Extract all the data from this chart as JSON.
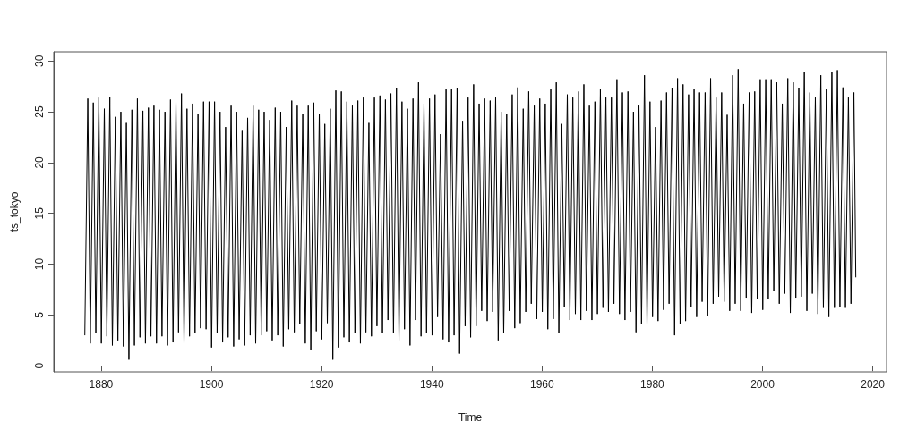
{
  "chart_data": {
    "type": "line",
    "xlabel": "Time",
    "ylabel": "ts_tokyo",
    "xlim": [
      1871.4,
      2022.5
    ],
    "ylim": [
      -0.6,
      30.9
    ],
    "xticks": [
      1880,
      1900,
      1920,
      1940,
      1960,
      1980,
      2000,
      2020
    ],
    "yticks": [
      0,
      5,
      10,
      15,
      20,
      25,
      30
    ],
    "x": [
      1877.04,
      1877.58,
      1878.04,
      1878.58,
      1879.04,
      1879.58,
      1880.04,
      1880.58,
      1881.04,
      1881.58,
      1882.04,
      1882.58,
      1883.04,
      1883.58,
      1884.04,
      1884.58,
      1885.04,
      1885.58,
      1886.04,
      1886.58,
      1887.04,
      1887.58,
      1888.04,
      1888.58,
      1889.04,
      1889.58,
      1890.04,
      1890.58,
      1891.04,
      1891.58,
      1892.04,
      1892.58,
      1893.04,
      1893.58,
      1894.04,
      1894.58,
      1895.04,
      1895.58,
      1896.04,
      1896.58,
      1897.04,
      1897.58,
      1898.04,
      1898.58,
      1899.04,
      1899.58,
      1900.04,
      1900.58,
      1901.04,
      1901.58,
      1902.04,
      1902.58,
      1903.04,
      1903.58,
      1904.04,
      1904.58,
      1905.04,
      1905.58,
      1906.04,
      1906.58,
      1907.04,
      1907.58,
      1908.04,
      1908.58,
      1909.04,
      1909.58,
      1910.04,
      1910.58,
      1911.04,
      1911.58,
      1912.04,
      1912.58,
      1913.04,
      1913.58,
      1914.04,
      1914.58,
      1915.04,
      1915.58,
      1916.04,
      1916.58,
      1917.04,
      1917.58,
      1918.04,
      1918.58,
      1919.04,
      1919.58,
      1920.04,
      1920.58,
      1921.04,
      1921.58,
      1922.04,
      1922.58,
      1923.04,
      1923.58,
      1924.04,
      1924.58,
      1925.04,
      1925.58,
      1926.04,
      1926.58,
      1927.04,
      1927.58,
      1928.04,
      1928.58,
      1929.04,
      1929.58,
      1930.04,
      1930.58,
      1931.04,
      1931.58,
      1932.04,
      1932.58,
      1933.04,
      1933.58,
      1934.04,
      1934.58,
      1935.04,
      1935.58,
      1936.04,
      1936.58,
      1937.04,
      1937.58,
      1938.04,
      1938.58,
      1939.04,
      1939.58,
      1940.04,
      1940.58,
      1941.04,
      1941.58,
      1942.04,
      1942.58,
      1943.04,
      1943.58,
      1944.04,
      1944.58,
      1945.04,
      1945.58,
      1946.04,
      1946.58,
      1947.04,
      1947.58,
      1948.04,
      1948.58,
      1949.04,
      1949.58,
      1950.04,
      1950.58,
      1951.04,
      1951.58,
      1952.04,
      1952.58,
      1953.04,
      1953.58,
      1954.04,
      1954.58,
      1955.04,
      1955.58,
      1956.04,
      1956.58,
      1957.04,
      1957.58,
      1958.04,
      1958.58,
      1959.04,
      1959.58,
      1960.04,
      1960.58,
      1961.04,
      1961.58,
      1962.04,
      1962.58,
      1963.04,
      1963.58,
      1964.04,
      1964.58,
      1965.04,
      1965.58,
      1966.04,
      1966.58,
      1967.04,
      1967.58,
      1968.04,
      1968.58,
      1969.04,
      1969.58,
      1970.04,
      1970.58,
      1971.04,
      1971.58,
      1972.04,
      1972.58,
      1973.04,
      1973.58,
      1974.04,
      1974.58,
      1975.04,
      1975.58,
      1976.04,
      1976.58,
      1977.04,
      1977.58,
      1978.04,
      1978.58,
      1979.04,
      1979.58,
      1980.04,
      1980.58,
      1981.04,
      1981.58,
      1982.04,
      1982.58,
      1983.04,
      1983.58,
      1984.04,
      1984.58,
      1985.04,
      1985.58,
      1986.04,
      1986.58,
      1987.04,
      1987.58,
      1988.04,
      1988.58,
      1989.04,
      1989.58,
      1990.04,
      1990.58,
      1991.04,
      1991.58,
      1992.04,
      1992.58,
      1993.04,
      1993.58,
      1994.04,
      1994.58,
      1995.04,
      1995.58,
      1996.04,
      1996.58,
      1997.04,
      1997.58,
      1998.04,
      1998.58,
      1999.04,
      1999.58,
      2000.04,
      2000.58,
      2001.04,
      2001.58,
      2002.04,
      2002.58,
      2003.04,
      2003.58,
      2004.04,
      2004.58,
      2005.04,
      2005.58,
      2006.04,
      2006.58,
      2007.04,
      2007.58,
      2008.04,
      2008.58,
      2009.04,
      2009.58,
      2010.04,
      2010.58,
      2011.04,
      2011.58,
      2012.04,
      2012.58,
      2013.04,
      2013.58,
      2014.04,
      2014.58,
      2015.04,
      2015.58,
      2016.04,
      2016.58,
      2016.92
    ],
    "series": [
      {
        "color": "#000000",
        "values": [
          3.0,
          26.3,
          2.2,
          25.9,
          3.2,
          26.4,
          2.2,
          25.3,
          2.9,
          26.5,
          2.0,
          24.5,
          2.5,
          25.0,
          1.9,
          23.9,
          0.6,
          25.2,
          2.0,
          26.3,
          2.8,
          25.1,
          2.2,
          25.4,
          2.9,
          25.6,
          2.2,
          25.2,
          2.9,
          25.0,
          2.0,
          26.2,
          2.3,
          26.0,
          3.3,
          26.8,
          2.2,
          25.3,
          2.9,
          25.8,
          3.2,
          24.8,
          3.7,
          26.0,
          3.6,
          26.0,
          1.8,
          26.0,
          3.2,
          25.0,
          2.3,
          23.5,
          2.8,
          25.6,
          1.9,
          25.0,
          2.6,
          23.2,
          2.0,
          24.4,
          3.0,
          25.6,
          2.2,
          25.2,
          3.0,
          25.0,
          3.4,
          24.2,
          2.5,
          25.4,
          3.0,
          25.0,
          1.9,
          23.5,
          3.6,
          26.1,
          3.3,
          25.6,
          4.1,
          24.8,
          2.2,
          25.6,
          1.6,
          25.9,
          3.4,
          24.8,
          2.6,
          23.8,
          4.2,
          25.3,
          0.6,
          27.1,
          1.8,
          27.0,
          2.8,
          26.0,
          2.3,
          25.6,
          3.2,
          26.1,
          2.2,
          26.4,
          3.3,
          23.9,
          2.9,
          26.4,
          3.9,
          26.6,
          3.2,
          26.2,
          4.5,
          26.8,
          3.2,
          27.3,
          2.5,
          26.0,
          3.6,
          25.3,
          2.0,
          26.3,
          4.5,
          27.9,
          2.9,
          25.8,
          3.2,
          26.3,
          3.0,
          26.7,
          4.8,
          22.8,
          2.6,
          27.2,
          2.3,
          27.2,
          3.0,
          27.3,
          1.2,
          24.1,
          3.9,
          26.4,
          2.8,
          27.7,
          3.9,
          25.8,
          5.4,
          26.3,
          4.4,
          26.1,
          5.3,
          26.4,
          2.5,
          25.0,
          3.2,
          24.8,
          5.4,
          26.7,
          3.7,
          27.4,
          4.2,
          25.3,
          5.3,
          27.0,
          6.1,
          25.6,
          4.6,
          26.3,
          5.3,
          25.8,
          3.6,
          27.2,
          4.6,
          27.9,
          3.2,
          23.8,
          5.8,
          26.7,
          4.5,
          26.4,
          5.1,
          27.0,
          4.5,
          27.7,
          5.4,
          25.6,
          4.5,
          26.0,
          5.1,
          27.2,
          5.7,
          26.4,
          5.3,
          26.4,
          6.1,
          28.2,
          5.1,
          26.9,
          4.5,
          27.0,
          5.3,
          25.0,
          3.3,
          25.6,
          4.1,
          28.6,
          4.0,
          26.0,
          4.8,
          23.5,
          4.4,
          26.1,
          5.5,
          26.9,
          6.1,
          27.3,
          3.0,
          28.3,
          4.1,
          27.7,
          4.4,
          26.7,
          5.8,
          27.2,
          4.8,
          26.9,
          6.3,
          26.9,
          4.9,
          28.3,
          6.1,
          26.4,
          6.8,
          26.9,
          6.3,
          24.7,
          5.4,
          28.6,
          6.1,
          29.2,
          5.4,
          25.8,
          6.7,
          26.9,
          5.2,
          27.0,
          6.6,
          28.2,
          5.5,
          28.2,
          6.6,
          28.2,
          7.4,
          27.9,
          6.1,
          25.8,
          7.1,
          28.3,
          5.2,
          27.9,
          6.7,
          27.3,
          6.8,
          28.9,
          5.4,
          26.9,
          7.1,
          26.4,
          5.1,
          28.6,
          5.7,
          27.2,
          4.8,
          28.9,
          5.7,
          29.1,
          5.8,
          27.4,
          5.7,
          26.4,
          6.1,
          26.9,
          8.7
        ]
      }
    ]
  }
}
